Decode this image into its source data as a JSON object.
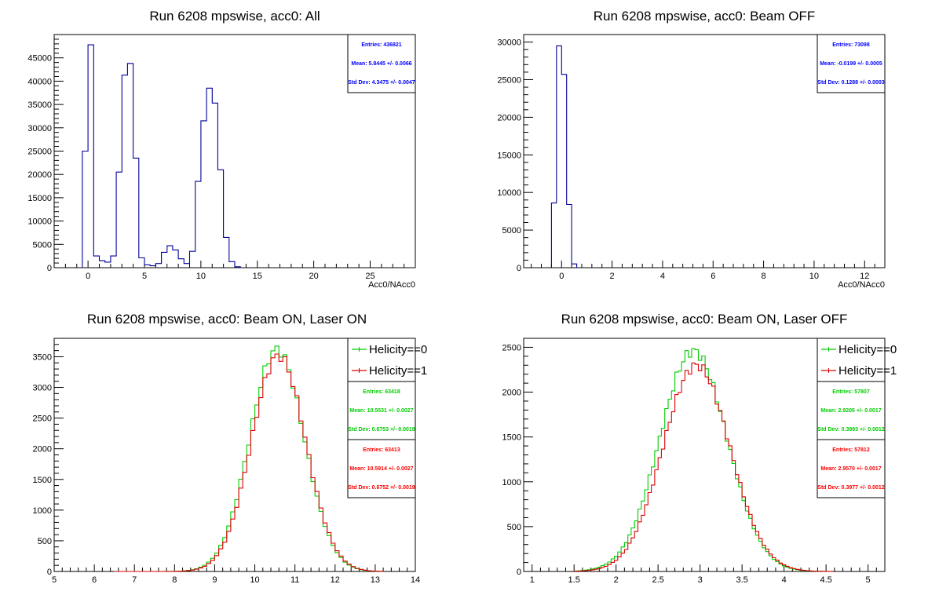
{
  "chart_data": [
    {
      "type": "histogram",
      "title": "Run 6208 mpswise, acc0: All",
      "xlabel": "Acc0/NAcc0",
      "xlim": [
        -3,
        29
      ],
      "ylim": [
        0,
        50000
      ],
      "xticks": [
        0,
        5,
        10,
        15,
        20,
        25
      ],
      "yticks": [
        0,
        5000,
        10000,
        15000,
        20000,
        25000,
        30000,
        35000,
        40000,
        45000
      ],
      "bin_width": 0.5,
      "series": [
        {
          "color": "#000099",
          "bins": [
            [
              -0.25,
              25000
            ],
            [
              0.25,
              47800
            ],
            [
              0.75,
              2500
            ],
            [
              1.25,
              1500
            ],
            [
              1.75,
              1200
            ],
            [
              2.25,
              2500
            ],
            [
              2.75,
              20500
            ],
            [
              3.25,
              41300
            ],
            [
              3.75,
              43800
            ],
            [
              4.25,
              23500
            ],
            [
              4.75,
              2100
            ],
            [
              5.25,
              600
            ],
            [
              5.75,
              400
            ],
            [
              6.25,
              900
            ],
            [
              6.75,
              3300
            ],
            [
              7.25,
              4700
            ],
            [
              7.75,
              3800
            ],
            [
              8.25,
              1900
            ],
            [
              8.75,
              900
            ],
            [
              9.25,
              3500
            ],
            [
              9.75,
              18500
            ],
            [
              10.25,
              31500
            ],
            [
              10.75,
              38500
            ],
            [
              11.25,
              35300
            ],
            [
              11.75,
              21000
            ],
            [
              12.25,
              6500
            ],
            [
              12.75,
              1300
            ],
            [
              13.25,
              200
            ]
          ]
        }
      ],
      "stats": [
        {
          "color": "#0000ff",
          "entries": "Entries: 436821",
          "mean": "Mean: 5.8445 +/- 0.0066",
          "stddev": "Std Dev: 4.3475 +/- 0.0047"
        }
      ]
    },
    {
      "type": "histogram",
      "title": "Run 6208 mpswise, acc0: Beam OFF",
      "xlabel": "Acc0/NAcc0",
      "xlim": [
        -1.5,
        12.8
      ],
      "ylim": [
        0,
        31000
      ],
      "xticks": [
        0,
        2,
        4,
        6,
        8,
        10,
        12
      ],
      "yticks": [
        0,
        5000,
        10000,
        15000,
        20000,
        25000,
        30000
      ],
      "bin_width": 0.2,
      "series": [
        {
          "color": "#000099",
          "bins": [
            [
              -0.3,
              8600
            ],
            [
              -0.1,
              29500
            ],
            [
              0.1,
              25700
            ],
            [
              0.3,
              8400
            ],
            [
              0.5,
              500
            ]
          ]
        }
      ],
      "stats": [
        {
          "color": "#0000ff",
          "entries": "Entries: 73098",
          "mean": "Mean: -0.0199 +/- 0.0005",
          "stddev": "Std Dev: 0.1288 +/- 0.0003"
        }
      ]
    },
    {
      "type": "histogram",
      "title": "Run 6208 mpswise, acc0: Beam ON, Laser ON",
      "xlabel": "",
      "xlim": [
        5,
        14
      ],
      "ylim": [
        0,
        3800
      ],
      "xticks": [
        5,
        6,
        7,
        8,
        9,
        10,
        11,
        12,
        13,
        14
      ],
      "yticks": [
        0,
        500,
        1000,
        1500,
        2000,
        2500,
        3000,
        3500
      ],
      "gauss": {
        "bin_width": 0.1,
        "start": 6.5,
        "end": 13.2
      },
      "series": [
        {
          "name": "Helicity==0",
          "color": "#00cc00",
          "mean": 10.5531,
          "sigma": 0.6753,
          "peak": 3620
        },
        {
          "name": "Helicity==1",
          "color": "#dd0000",
          "mean": 10.5914,
          "sigma": 0.6752,
          "peak": 3520
        }
      ],
      "stats": [
        {
          "color": "#00cc00",
          "entries": "Entries: 63418",
          "mean": "Mean: 10.5531 +/- 0.0027",
          "stddev": "Std Dev: 0.6753 +/- 0.0019"
        },
        {
          "color": "#ff0000",
          "entries": "Entries: 63413",
          "mean": "Mean: 10.5914 +/- 0.0027",
          "stddev": "Std Dev: 0.6752 +/- 0.0019"
        }
      ]
    },
    {
      "type": "histogram",
      "title": "Run 6208 mpswise, acc0: Beam ON, Laser OFF",
      "xlabel": "",
      "xlim": [
        0.9,
        5.2
      ],
      "ylim": [
        0,
        2600
      ],
      "xticks": [
        1,
        1.5,
        2,
        2.5,
        3,
        3.5,
        4,
        4.5,
        5
      ],
      "yticks": [
        0,
        500,
        1000,
        1500,
        2000,
        2500
      ],
      "gauss": {
        "bin_width": 0.04,
        "start": 1.5,
        "end": 4.6
      },
      "series": [
        {
          "name": "Helicity==0",
          "color": "#00cc00",
          "mean": 2.9205,
          "sigma": 0.3993,
          "peak": 2460
        },
        {
          "name": "Helicity==1",
          "color": "#dd0000",
          "mean": 2.957,
          "sigma": 0.3977,
          "peak": 2300
        }
      ],
      "stats": [
        {
          "color": "#00cc00",
          "entries": "Entries: 57807",
          "mean": "Mean: 2.9205 +/- 0.0017",
          "stddev": "Std Dev: 0.3993 +/- 0.0012"
        },
        {
          "color": "#ff0000",
          "entries": "Entries: 57812",
          "mean": "Mean: 2.9570 +/- 0.0017",
          "stddev": "Std Dev: 0.3977 +/- 0.0012"
        }
      ]
    }
  ]
}
